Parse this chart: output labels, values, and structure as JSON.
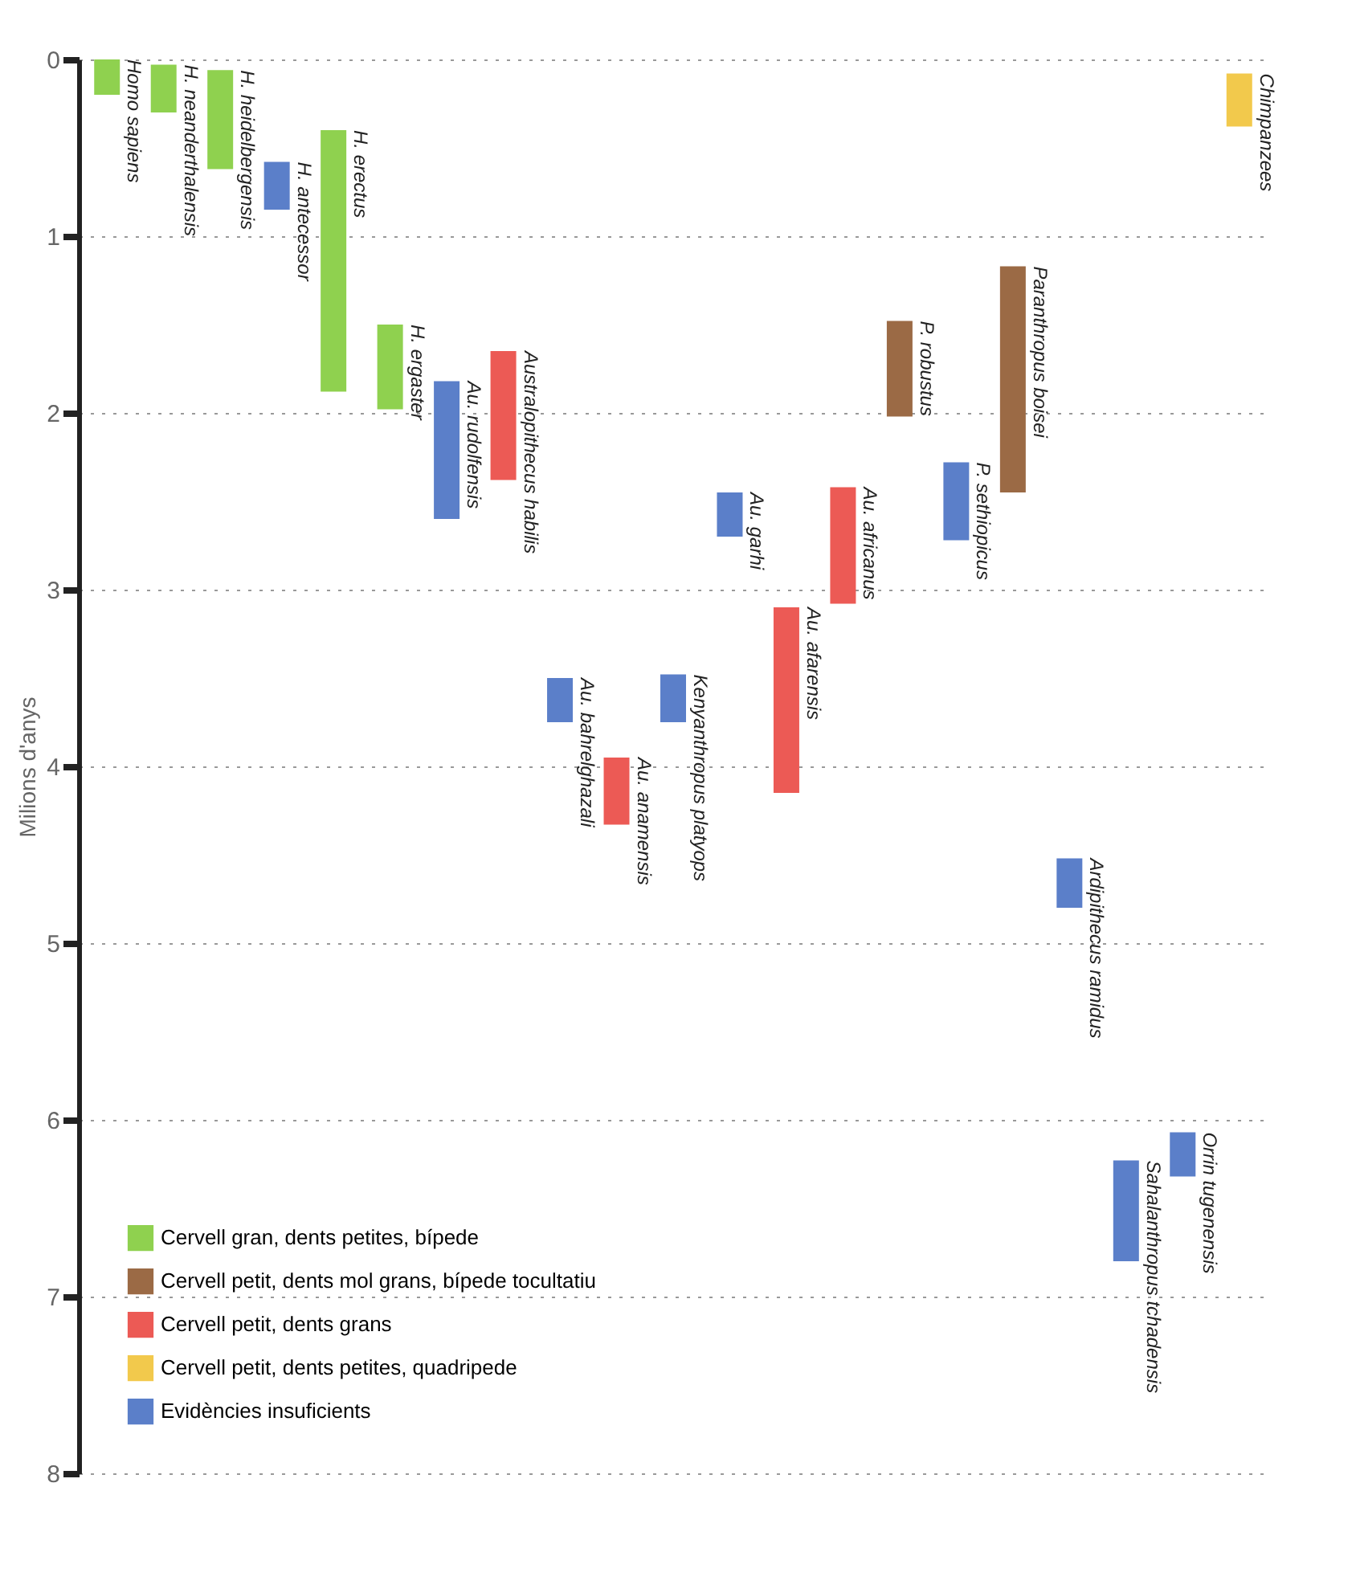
{
  "chart_data": {
    "type": "bar",
    "ylabel": "Milions d'anys",
    "ylim": [
      8,
      0
    ],
    "yticks": [
      0,
      1,
      2,
      3,
      4,
      5,
      6,
      7,
      8
    ],
    "grid": "y",
    "legend": "bottom left",
    "categories": [
      "Homo sapiens",
      "H. neanderthalensis",
      "H. heidelbergensis",
      "H. antecessor",
      "H. erectus",
      "H. ergaster",
      "Au. rudolfensis",
      "Australopithecus habilis",
      "Au. bahrelghazali",
      "Au. anamensis",
      "Kenyanthropus platyops",
      "Au. garhi",
      "Au. afarensis",
      "Au. africanus",
      "P. robustus",
      "P. sethiopicus",
      "Paranthropus boisei",
      "Ardipithecus ramidus",
      "Sahalanthropus tchadensis",
      "Orrin tugenensis",
      "Chimpanzees"
    ],
    "series": [
      {
        "name": "Cervell gran, dents petites, bípede",
        "color": "#8fd14f",
        "values": [
          0.2,
          0.27,
          0.56,
          null,
          1.48,
          0.48,
          null,
          null,
          null,
          null,
          null,
          null,
          null,
          null,
          null,
          null,
          null,
          null,
          null,
          null,
          null
        ],
        "base": [
          0,
          0.03,
          0.06,
          null,
          0.4,
          1.5,
          null,
          null,
          null,
          null,
          null,
          null,
          null,
          null,
          null,
          null,
          null,
          null,
          null,
          null,
          null
        ]
      },
      {
        "name": "Cervell petit, dents mol grans, bípede tocultatiu",
        "color": "#9b6a45",
        "values": [
          null,
          null,
          null,
          null,
          null,
          null,
          null,
          null,
          null,
          null,
          null,
          null,
          null,
          null,
          0.54,
          null,
          1.28,
          null,
          null,
          null,
          null
        ],
        "base": [
          null,
          null,
          null,
          null,
          null,
          null,
          null,
          null,
          null,
          null,
          null,
          null,
          null,
          null,
          1.48,
          null,
          1.17,
          null,
          null,
          null,
          null
        ]
      },
      {
        "name": "Cervell petit, dents grans",
        "color": "#ec5a55",
        "values": [
          null,
          null,
          null,
          null,
          null,
          null,
          null,
          0.73,
          null,
          0.38,
          null,
          null,
          1.05,
          0.66,
          null,
          null,
          null,
          null,
          null,
          null,
          null
        ],
        "base": [
          null,
          null,
          null,
          null,
          null,
          null,
          null,
          1.65,
          null,
          3.95,
          null,
          null,
          3.1,
          2.42,
          null,
          null,
          null,
          null,
          null,
          null,
          null
        ]
      },
      {
        "name": "Cervell petit, dents petites, quadripede",
        "color": "#f2c94c",
        "values": [
          null,
          null,
          null,
          null,
          null,
          null,
          null,
          null,
          null,
          null,
          null,
          null,
          null,
          null,
          null,
          null,
          null,
          null,
          null,
          null,
          0.3
        ],
        "base": [
          null,
          null,
          null,
          null,
          null,
          null,
          null,
          null,
          null,
          null,
          null,
          null,
          null,
          null,
          null,
          null,
          null,
          null,
          null,
          null,
          0.08
        ]
      },
      {
        "name": "Evidències insuficients",
        "color": "#5b7fc9",
        "values": [
          null,
          null,
          null,
          0.27,
          null,
          null,
          0.78,
          null,
          0.25,
          null,
          0.27,
          0.25,
          null,
          null,
          null,
          0.44,
          null,
          0.28,
          0.57,
          0.25,
          null
        ],
        "base": [
          null,
          null,
          null,
          0.58,
          null,
          null,
          1.82,
          null,
          3.5,
          null,
          3.48,
          2.45,
          null,
          null,
          null,
          2.28,
          null,
          4.52,
          6.23,
          6.07,
          null
        ]
      }
    ]
  }
}
